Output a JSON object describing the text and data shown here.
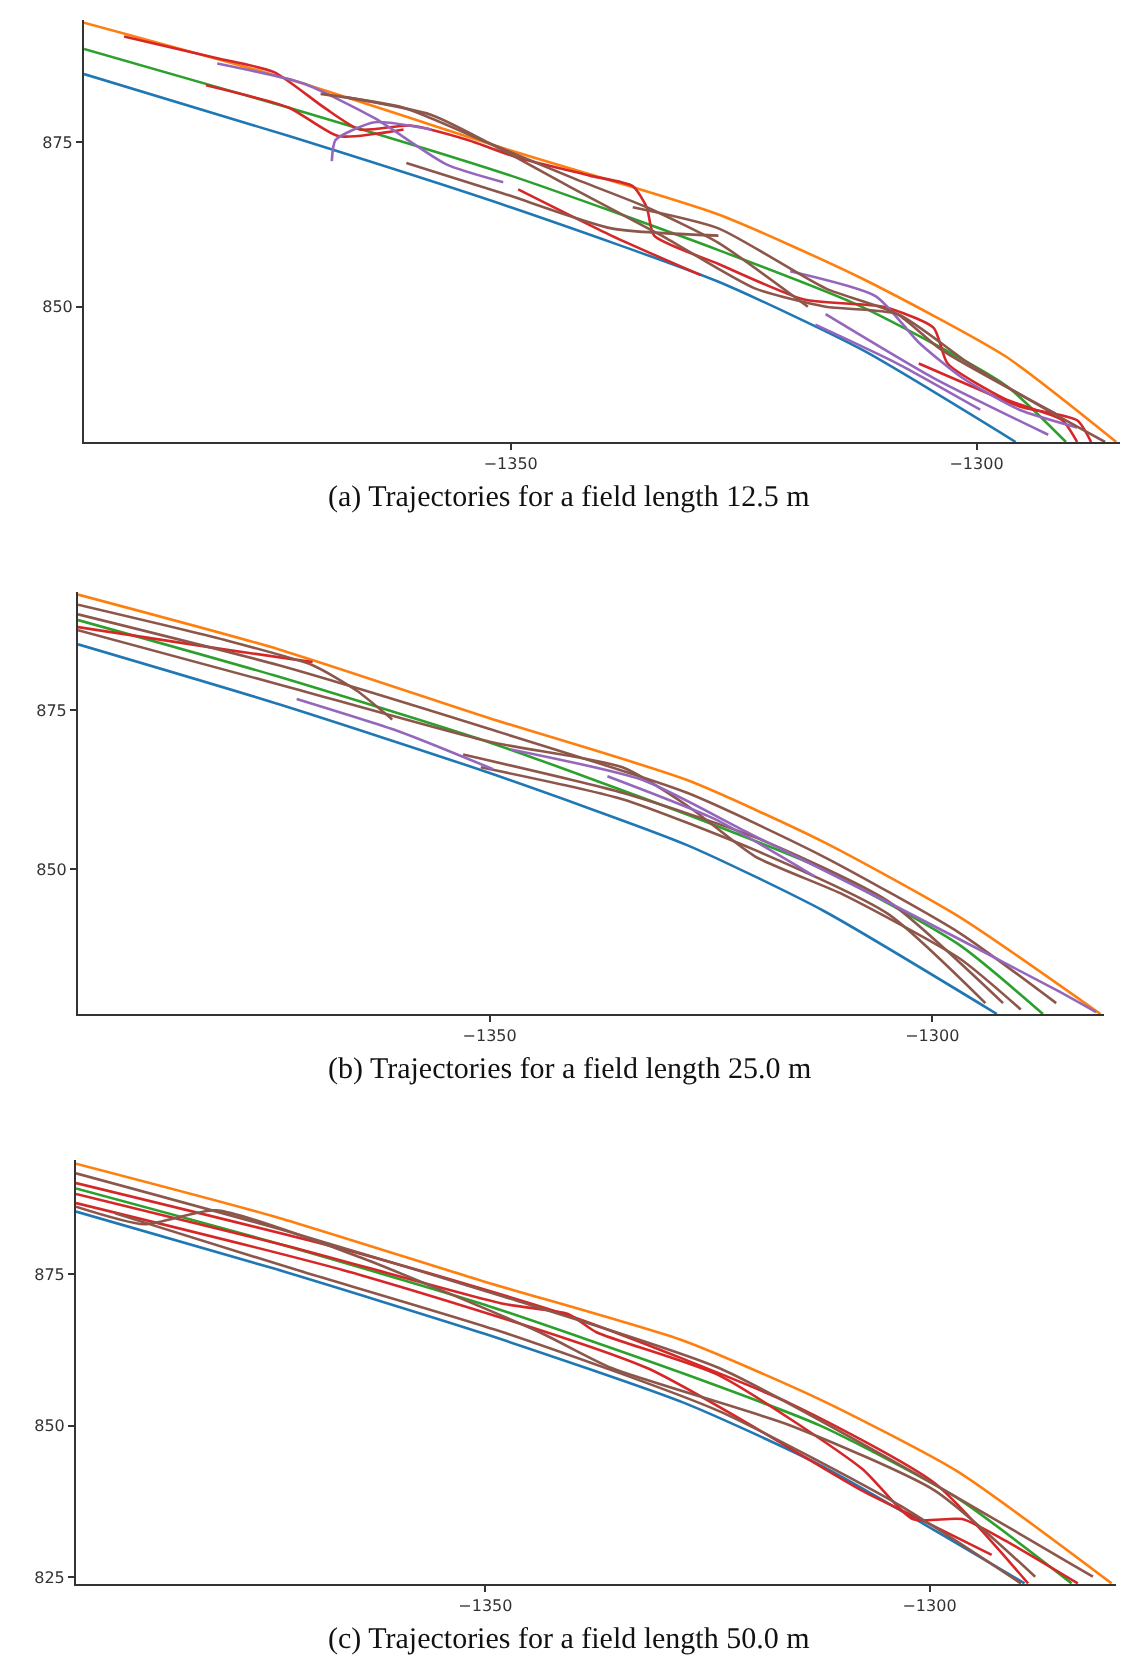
{
  "chart_data": [
    {
      "type": "line",
      "title": "(a) Trajectories for a field length 12.5 m",
      "xlim": [
        -1395.8,
        -1284.6
      ],
      "ylim": [
        829.5,
        893.5
      ],
      "xticks": [
        -1350,
        -1300
      ],
      "yticks": [
        850,
        875
      ],
      "series": [
        {
          "color": "#ff7f0e",
          "x": [
            -1395.8,
            -1373.8,
            -1350,
            -1327.7,
            -1312.3,
            -1296.9,
            -1285
          ],
          "values": [
            893.1,
            884.5,
            873.7,
            864.0,
            854.3,
            842.5,
            829.5
          ]
        },
        {
          "color": "#2ca02c",
          "x": [
            -1395.8,
            -1373.8,
            -1350,
            -1327.7,
            -1312.3,
            -1296.9,
            -1290.4
          ],
          "values": [
            889.1,
            880.2,
            869.9,
            858.6,
            850,
            838.1,
            829.5
          ]
        },
        {
          "color": "#1f77b4",
          "x": [
            -1395.8,
            -1373.8,
            -1350,
            -1327.7,
            -1312.3,
            -1295.8
          ],
          "values": [
            885.3,
            875.9,
            865.1,
            853.8,
            843.5,
            829.5
          ]
        },
        {
          "color": "#d62728",
          "x": [
            -1391.5,
            -1381.5,
            -1375.4,
            -1370,
            -1366.2,
            -1360.8,
            -1354.6,
            -1349.2,
            -1341.5,
            -1336.9,
            -1335.4,
            -1334.6,
            -1327.7,
            -1318.5,
            -1310,
            -1304.6,
            -1303.1,
            -1296.9,
            -1290.8,
            -1289.2
          ],
          "values": [
            891,
            887.7,
            885.6,
            880.2,
            876.9,
            877.5,
            875.3,
            872.6,
            869.9,
            868.3,
            865.1,
            860.8,
            856.5,
            851.1,
            850,
            846.8,
            841.4,
            836,
            832.8,
            829.5
          ]
        },
        {
          "color": "#d62728",
          "x": [
            -1382.7,
            -1373.8,
            -1368.5,
            -1361.5
          ],
          "values": [
            883.6,
            880.2,
            875.9,
            876.9
          ]
        },
        {
          "color": "#d62728",
          "x": [
            -1349.2,
            -1339.2,
            -1329.6
          ],
          "values": [
            867.8,
            860.8,
            854.8
          ]
        },
        {
          "color": "#d62728",
          "x": [
            -1306.2,
            -1300.8,
            -1295.4,
            -1289.2,
            -1287.7
          ],
          "values": [
            841.4,
            838.1,
            834.9,
            832.8,
            829.5
          ]
        },
        {
          "color": "#9467bd",
          "x": [
            -1381.5,
            -1372.3,
            -1364.6,
            -1356.9,
            -1350.8
          ],
          "values": [
            886.9,
            883.9,
            878.6,
            871.6,
            868.9
          ]
        },
        {
          "color": "#9467bd",
          "x": [
            -1369.2,
            -1368.8,
            -1364.6,
            -1358.5
          ],
          "values": [
            872.1,
            875.3,
            878,
            876.9
          ]
        },
        {
          "color": "#9467bd",
          "x": [
            -1320,
            -1310.8,
            -1306.2,
            -1301.5,
            -1295.4,
            -1289.2
          ],
          "values": [
            855.4,
            851.6,
            844.6,
            839.2,
            834.4,
            831.7
          ]
        },
        {
          "color": "#9467bd",
          "x": [
            -1317.3,
            -1308.5,
            -1299.6
          ],
          "values": [
            847.3,
            841.4,
            834.4
          ]
        },
        {
          "color": "#9467bd",
          "x": [
            -1316.2,
            -1304.6,
            -1292.3
          ],
          "values": [
            848.9,
            839.2,
            830.6
          ]
        },
        {
          "color": "#8c564b",
          "x": [
            -1370.4,
            -1361.5,
            -1352.3,
            -1343.1,
            -1335.4,
            -1327.7,
            -1318.1
          ],
          "values": [
            882.3,
            880.2,
            874.8,
            869.4,
            865.1,
            859.7,
            850
          ]
        },
        {
          "color": "#8c564b",
          "x": [
            -1361.2,
            -1350.8,
            -1339.2,
            -1327.7
          ],
          "values": [
            871.8,
            867.2,
            861.9,
            860.8
          ]
        },
        {
          "color": "#8c564b",
          "x": [
            -1367.7,
            -1358.5,
            -1350.8,
            -1343.8,
            -1333.8,
            -1323.8,
            -1316.2,
            -1308.5,
            -1300.8,
            -1293.1,
            -1286.2
          ],
          "values": [
            881.8,
            879.1,
            873.7,
            868.3,
            860.8,
            852.8,
            850,
            848.9,
            841.4,
            834.9,
            829.5
          ]
        },
        {
          "color": "#8c564b",
          "x": [
            -1336.9,
            -1327.7,
            -1316.2,
            -1308.5,
            -1303.8,
            -1291.5
          ],
          "values": [
            865.1,
            861.9,
            852.8,
            848.9,
            843.5,
            833.8
          ]
        }
      ]
    },
    {
      "type": "line",
      "title": "(b) Trajectories for a field length 25.0 m",
      "xlim": [
        -1396.5,
        -1280.6
      ],
      "ylim": [
        827.3,
        893.5
      ],
      "xticks": [
        -1350,
        -1300
      ],
      "yticks": [
        850,
        875
      ],
      "series": [
        {
          "color": "#ff7f0e",
          "x": [
            -1396.5,
            -1373.8,
            -1350,
            -1327.7,
            -1312.3,
            -1296.9,
            -1281
          ],
          "values": [
            893.1,
            884.5,
            873.7,
            864.0,
            854.3,
            842.5,
            827.3
          ]
        },
        {
          "color": "#2ca02c",
          "x": [
            -1396.5,
            -1373.8,
            -1350,
            -1327.7,
            -1312.3,
            -1296.9,
            -1287.5
          ],
          "values": [
            889.1,
            880.2,
            869.9,
            858.6,
            850,
            838.1,
            827.3
          ]
        },
        {
          "color": "#1f77b4",
          "x": [
            -1396.5,
            -1373.8,
            -1350,
            -1327.7,
            -1312.3,
            -1292.7
          ],
          "values": [
            885.3,
            875.9,
            865.1,
            853.8,
            843.5,
            827.3
          ]
        },
        {
          "color": "#d62728",
          "x": [
            -1396.5,
            -1380,
            -1370
          ],
          "values": [
            888,
            884.5,
            882.5
          ]
        },
        {
          "color": "#8c564b",
          "x": [
            -1396.5,
            -1380,
            -1370,
            -1365,
            -1361
          ],
          "values": [
            891.5,
            886,
            882,
            878,
            873.5
          ]
        },
        {
          "color": "#8c564b",
          "x": [
            -1396.5,
            -1373.8,
            -1350,
            -1327.7,
            -1312.3,
            -1296.9,
            -1286
          ],
          "values": [
            890,
            882,
            872,
            862,
            852,
            840,
            829
          ]
        },
        {
          "color": "#8c564b",
          "x": [
            -1396.5,
            -1373.8,
            -1350,
            -1335,
            -1327.7,
            -1320,
            -1310,
            -1296.9,
            -1290
          ],
          "values": [
            887.5,
            879,
            870,
            866,
            860,
            852,
            846,
            836,
            828
          ]
        },
        {
          "color": "#8c564b",
          "x": [
            -1351,
            -1335,
            -1320,
            -1305,
            -1294
          ],
          "values": [
            866,
            861,
            853,
            843,
            829
          ]
        },
        {
          "color": "#8c564b",
          "x": [
            -1353,
            -1335,
            -1320,
            -1305,
            -1292
          ],
          "values": [
            868,
            862,
            855,
            845,
            829
          ]
        },
        {
          "color": "#9467bd",
          "x": [
            -1371.8,
            -1360,
            -1349.6
          ],
          "values": [
            876.7,
            871.5,
            865.7
          ]
        },
        {
          "color": "#9467bd",
          "x": [
            -1347.6,
            -1332.7,
            -1320.6,
            -1304.4,
            -1285.9,
            -1281.5
          ],
          "values": [
            868.8,
            864,
            855.6,
            844.4,
            831,
            827.6
          ]
        },
        {
          "color": "#9467bd",
          "x": [
            -1336.7,
            -1324.6,
            -1313.3
          ],
          "values": [
            864.6,
            857.9,
            848.9
          ]
        }
      ]
    },
    {
      "type": "line",
      "title": "(c) Trajectories for a field length 50.0 m",
      "xlim": [
        -1396.1,
        -1279
      ],
      "ylim": [
        823.9,
        893.8
      ],
      "xticks": [
        -1350,
        -1300
      ],
      "yticks": [
        825,
        850,
        875
      ],
      "series": [
        {
          "color": "#ff7f0e",
          "x": [
            -1396.1,
            -1373.8,
            -1350,
            -1327.7,
            -1312.3,
            -1296.9,
            -1279.5
          ],
          "values": [
            893.2,
            884.5,
            873.7,
            864.0,
            854.3,
            842.5,
            824
          ]
        },
        {
          "color": "#2ca02c",
          "x": [
            -1396.1,
            -1373.8,
            -1350,
            -1327.7,
            -1312.3,
            -1296.9,
            -1284
          ],
          "values": [
            889.1,
            880.2,
            869.9,
            858.6,
            850,
            838.1,
            824
          ]
        },
        {
          "color": "#1f77b4",
          "x": [
            -1396.1,
            -1373.8,
            -1350,
            -1327.7,
            -1312.3,
            -1289.3
          ],
          "values": [
            885.3,
            875.9,
            865.1,
            853.8,
            843.5,
            824
          ]
        },
        {
          "color": "#d62728",
          "x": [
            -1396.1,
            -1364.2,
            -1339.9,
            -1315.6,
            -1299.4,
            -1288.9
          ],
          "values": [
            890,
            878.4,
            867.8,
            853.6,
            840.5,
            824
          ]
        },
        {
          "color": "#d62728",
          "x": [
            -1396.1,
            -1372.2,
            -1348,
            -1340.7,
            -1337.5,
            -1323.7,
            -1307.6,
            -1301.9,
            -1296.3,
            -1291.4,
            -1283.3
          ],
          "values": [
            888.2,
            879.6,
            870.1,
            868.4,
            865.4,
            858.3,
            842.9,
            834.6,
            834.6,
            831,
            824
          ]
        },
        {
          "color": "#d62728",
          "x": [
            -1396.1,
            -1364.2,
            -1331.8,
            -1307.6,
            -1301.1,
            -1293
          ],
          "values": [
            886.7,
            874.9,
            859.5,
            839.3,
            834.6,
            828.7
          ]
        },
        {
          "color": "#8c564b",
          "x": [
            -1396.1,
            -1372.2,
            -1348,
            -1323.7,
            -1301.1,
            -1281.6
          ],
          "values": [
            891.6,
            882,
            871.3,
            859.5,
            841.7,
            825.1
          ]
        },
        {
          "color": "#8c564b",
          "x": [
            -1396.1,
            -1388.4,
            -1380.3,
            -1364.2,
            -1343.9,
            -1335.8,
            -1315.6,
            -1299.4,
            -1288.1
          ],
          "values": [
            886.1,
            883.2,
            885.5,
            877.8,
            865.4,
            859.5,
            850,
            839.3,
            825.1
          ]
        },
        {
          "color": "#8c564b",
          "x": [
            -1391.7,
            -1372.2,
            -1348,
            -1323.7,
            -1303.5,
            -1289.7
          ],
          "values": [
            885,
            876.1,
            865.4,
            852.4,
            837,
            824
          ]
        }
      ]
    }
  ]
}
